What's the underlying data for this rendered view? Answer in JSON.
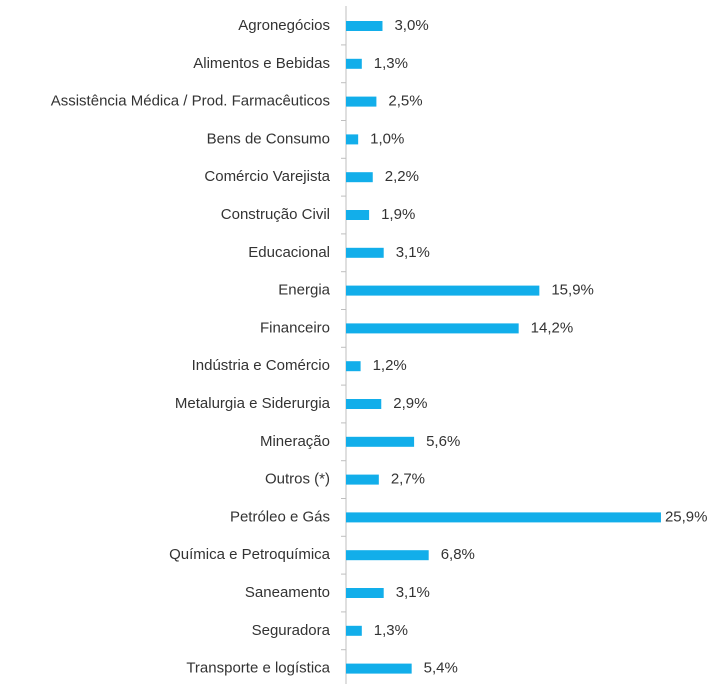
{
  "chart_data": {
    "type": "bar",
    "orientation": "horizontal",
    "color": "#12aeea",
    "categories": [
      "Agronegócios",
      "Alimentos e Bebidas",
      "Assistência Médica / Prod. Farmacêuticos",
      "Bens de Consumo",
      "Comércio Varejista",
      "Construção Civil",
      "Educacional",
      "Energia",
      "Financeiro",
      "Indústria e Comércio",
      "Metalurgia e Siderurgia",
      "Mineração",
      "Outros (*)",
      "Petróleo e Gás",
      "Química e Petroquímica",
      "Saneamento",
      "Seguradora",
      "Transporte e logística"
    ],
    "values": [
      3.0,
      1.3,
      2.5,
      1.0,
      2.2,
      1.9,
      3.1,
      15.9,
      14.2,
      1.2,
      2.9,
      5.6,
      2.7,
      25.9,
      6.8,
      3.1,
      1.3,
      5.4
    ],
    "value_labels": [
      "3,0%",
      "1,3%",
      "2,5%",
      "1,0%",
      "2,2%",
      "1,9%",
      "3,1%",
      "15,9%",
      "14,2%",
      "1,2%",
      "2,9%",
      "5,6%",
      "2,7%",
      "25,9%",
      "6,8%",
      "3,1%",
      "1,3%",
      "5,4%"
    ]
  }
}
